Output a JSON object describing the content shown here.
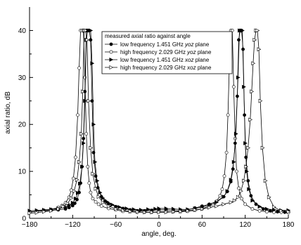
{
  "chart_data": {
    "type": "line",
    "title": "",
    "xlabel": "angle, deg.",
    "ylabel": "axial ratio, dB",
    "xlim": [
      -180,
      180
    ],
    "ylim": [
      0,
      45
    ],
    "x_ticks": [
      "-180",
      "-120",
      "-60",
      "0",
      "60",
      "120",
      "180"
    ],
    "x_tick_values": [
      -180,
      -120,
      -60,
      0,
      60,
      120,
      180
    ],
    "y_ticks": [
      "0",
      "10",
      "20",
      "30",
      "40"
    ],
    "y_tick_values": [
      0,
      10,
      20,
      30,
      40
    ],
    "grid": false,
    "legend_title": "measured axial ratio against angle",
    "legend_placement": "top-center",
    "series": [
      {
        "name": "low frequency 1.451 GHz yoz plane",
        "legend_parts": [
          "low frequency 1.451 GHz ",
          "yoz",
          " plane"
        ],
        "marker": "filled-circle",
        "color": "#000000",
        "x": [
          -180,
          -170,
          -160,
          -150,
          -140,
          -130,
          -125,
          -120,
          -117,
          -114,
          -111,
          -109,
          -107,
          -105,
          -103,
          -101,
          -99,
          -97,
          -95,
          -93,
          -91,
          -88,
          -85,
          -80,
          -75,
          -70,
          -60,
          -50,
          -40,
          -30,
          -20,
          -10,
          0,
          10,
          20,
          30,
          40,
          50,
          60,
          70,
          80,
          90,
          95,
          100,
          103,
          106,
          109,
          111,
          113,
          115,
          117,
          119,
          121,
          124,
          128,
          135,
          145,
          155,
          165,
          175,
          180
        ],
        "y": [
          1.4,
          1.5,
          1.6,
          1.7,
          1.8,
          2.0,
          2.3,
          2.7,
          3.2,
          4.0,
          5.5,
          7.5,
          11,
          17,
          27,
          40,
          40,
          40,
          38,
          25,
          14,
          9,
          6.5,
          4.6,
          3.7,
          3.1,
          2.5,
          2.1,
          1.8,
          1.6,
          1.6,
          1.7,
          1.8,
          1.8,
          1.7,
          1.6,
          1.8,
          2.2,
          2.6,
          3.0,
          3.6,
          4.6,
          5.7,
          7.8,
          10.5,
          16,
          26,
          38,
          40,
          40,
          36,
          22,
          13,
          8,
          4.8,
          3.0,
          2.0,
          1.6,
          1.4,
          1.3,
          1.3
        ]
      },
      {
        "name": "high frequency 2.029 GHz yoz plane",
        "legend_parts": [
          "high frequency  2.029 GHz ",
          "yoz",
          " plane"
        ],
        "marker": "open-circle",
        "color": "#000000",
        "x": [
          -180,
          -170,
          -160,
          -150,
          -140,
          -135,
          -130,
          -125,
          -122,
          -119,
          -116,
          -113,
          -111,
          -109,
          -107,
          -105,
          -103,
          -101,
          -99,
          -97,
          -95,
          -92,
          -88,
          -84,
          -80,
          -70,
          -60,
          -50,
          -40,
          -30,
          -20,
          -10,
          0,
          10,
          20,
          30,
          40,
          50,
          60,
          70,
          75,
          80,
          85,
          88,
          91,
          94,
          96,
          98,
          100,
          102,
          104,
          106,
          108,
          111,
          115,
          120,
          130,
          140,
          150,
          160,
          170,
          180
        ],
        "y": [
          1.3,
          1.5,
          1.7,
          1.9,
          2.3,
          2.7,
          3.3,
          4.5,
          6.0,
          8.5,
          13,
          22,
          32,
          40,
          40,
          40,
          30,
          18,
          11,
          7.5,
          5.5,
          4.2,
          3.5,
          3.0,
          2.6,
          2.1,
          1.8,
          1.5,
          1.4,
          1.3,
          1.3,
          1.3,
          1.4,
          1.4,
          1.4,
          1.4,
          1.5,
          1.7,
          2.0,
          2.6,
          3.0,
          3.6,
          4.8,
          6.2,
          9,
          14,
          22,
          33,
          40,
          40,
          28,
          17,
          10,
          6.4,
          4.2,
          3.0,
          2.0,
          1.6,
          1.4,
          1.3,
          1.3,
          1.2
        ]
      },
      {
        "name": "low frequency 1.451 GHz xoz plane",
        "legend_parts": [
          "low frequency 1.451 GHz ",
          "xoz",
          " plane"
        ],
        "marker": "filled-triangle-right",
        "color": "#000000",
        "x": [
          -180,
          -170,
          -160,
          -150,
          -140,
          -130,
          -125,
          -120,
          -116,
          -113,
          -110,
          -107,
          -105,
          -103,
          -101,
          -99,
          -97,
          -95,
          -93,
          -91,
          -89,
          -86,
          -82,
          -78,
          -72,
          -65,
          -55,
          -45,
          -35,
          -25,
          -15,
          -5,
          0,
          10,
          20,
          30,
          40,
          50,
          60,
          70,
          80,
          90,
          95,
          100,
          104,
          107,
          110,
          112,
          114,
          116,
          118,
          120,
          122,
          125,
          130,
          140,
          150,
          160,
          170,
          180
        ],
        "y": [
          1.6,
          1.7,
          1.8,
          1.9,
          2.1,
          2.4,
          2.8,
          3.3,
          4.2,
          5.4,
          7.4,
          11,
          16,
          25,
          38,
          40,
          40,
          40,
          33,
          20,
          12,
          8,
          5.5,
          4.3,
          3.5,
          2.9,
          2.4,
          2.1,
          1.9,
          1.8,
          1.9,
          2.0,
          2.1,
          2.1,
          2.0,
          1.9,
          1.9,
          2.1,
          2.4,
          2.8,
          3.4,
          4.6,
          5.8,
          8.2,
          12,
          18,
          30,
          40,
          40,
          40,
          28,
          16,
          10,
          6.2,
          3.8,
          2.5,
          2.0,
          1.8,
          1.7,
          1.7
        ]
      },
      {
        "name": "high frequency 2.029 GHz xoz plane",
        "legend_parts": [
          "high frequency 2.029 GHz ",
          "xoz",
          " plane"
        ],
        "marker": "open-triangle-right",
        "color": "#000000",
        "x": [
          -180,
          -170,
          -160,
          -150,
          -140,
          -133,
          -127,
          -122,
          -118,
          -114,
          -111,
          -108,
          -106,
          -104,
          -102,
          -100,
          -98,
          -95,
          -92,
          -88,
          -84,
          -78,
          -70,
          -60,
          -50,
          -40,
          -30,
          -20,
          -10,
          0,
          10,
          20,
          30,
          40,
          50,
          60,
          70,
          80,
          90,
          100,
          105,
          110,
          114,
          118,
          121,
          124,
          127,
          129,
          131,
          133,
          135,
          137,
          139,
          141,
          144,
          148,
          153,
          160,
          170,
          180
        ],
        "y": [
          1.1,
          1.2,
          1.4,
          1.6,
          2.0,
          2.5,
          3.2,
          4.3,
          5.8,
          8.2,
          12,
          18,
          27,
          40,
          40,
          38,
          25,
          15,
          9.5,
          6.3,
          4.6,
          3.4,
          2.6,
          2.0,
          1.7,
          1.5,
          1.4,
          1.3,
          1.3,
          1.3,
          1.3,
          1.4,
          1.5,
          1.6,
          1.8,
          2.0,
          2.3,
          2.6,
          3.0,
          3.4,
          3.8,
          4.5,
          5.8,
          8.0,
          11,
          15,
          21,
          27,
          33,
          38,
          40,
          40,
          36,
          25,
          15,
          8,
          4.5,
          2.4,
          1.6,
          1.4
        ]
      }
    ]
  }
}
